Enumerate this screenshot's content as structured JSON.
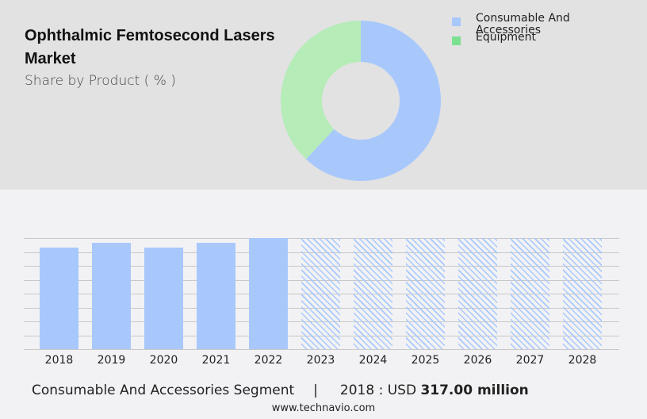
{
  "header": {
    "title": "Ophthalmic Femtosecond Lasers Market",
    "subtitle": "Share by Product ( % )"
  },
  "legend": [
    {
      "label": "Consumable And Accessories",
      "color": "#a8c8fc"
    },
    {
      "label": "Equipment",
      "color": "#7be08f"
    }
  ],
  "footer": {
    "segment": "Consumable And Accessories Segment",
    "separator": "|",
    "year_label": "2018 : USD",
    "value": "317.00 million",
    "site": "www.technavio.com"
  },
  "chart_data": [
    {
      "type": "pie",
      "subtype": "donut",
      "title": "Ophthalmic Femtosecond Lasers Market - Share by Product ( % )",
      "categories": [
        "Consumable And Accessories",
        "Equipment"
      ],
      "values": [
        62,
        38
      ],
      "colors": [
        "#a8c8fc",
        "#b5ecb8"
      ],
      "legend_position": "right"
    },
    {
      "type": "bar",
      "title": "Consumable And Accessories Segment",
      "categories": [
        "2018",
        "2019",
        "2020",
        "2021",
        "2022",
        "2023",
        "2024",
        "2025",
        "2026",
        "2027",
        "2028"
      ],
      "series": [
        {
          "name": "Consumable And Accessories (USD million)",
          "values": [
            317,
            331,
            317,
            331,
            347,
            347,
            347,
            347,
            347,
            347,
            347
          ]
        }
      ],
      "forecast_from": "2023",
      "forecast_style": "hatched",
      "annotation": "2018 : USD 317.00 million",
      "grid": true,
      "yaxis_visible": false
    }
  ]
}
